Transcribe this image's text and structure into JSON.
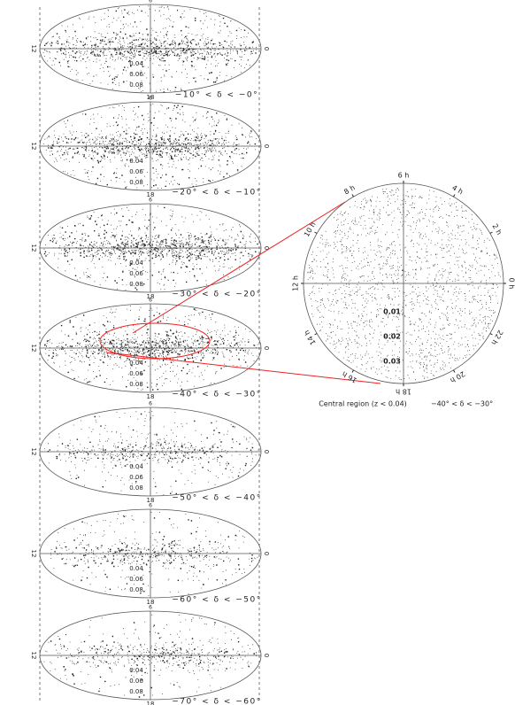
{
  "panels": [
    {
      "declination": "−10° < δ < −0°",
      "redshifts": [
        "0.04",
        "0.06",
        "0.08"
      ]
    },
    {
      "declination": "−20° < δ < −10°",
      "redshifts": [
        "0.04",
        "0.06",
        "0.08"
      ]
    },
    {
      "declination": "−30° < δ < −20°",
      "redshifts": [
        "0.04",
        "0.06",
        "0.08"
      ]
    },
    {
      "declination": "−40° < δ < −30°",
      "redshifts": [
        "0.04",
        "0.06",
        "0.08"
      ]
    },
    {
      "declination": "−50° < δ < −40°",
      "redshifts": [
        "0.04",
        "0.06",
        "0.08"
      ]
    },
    {
      "declination": "−60° < δ < −50°",
      "redshifts": [
        "0.04",
        "0.06",
        "0.08"
      ]
    },
    {
      "declination": "−70° < δ < −60°",
      "redshifts": [
        "0.04",
        "0.06",
        "0.08"
      ]
    }
  ],
  "panel_hours": [
    "12",
    "0",
    "6",
    "18"
  ],
  "zoom": {
    "hours": [
      "6 h",
      "4 h",
      "2 h",
      "0 h",
      "22 h",
      "20 h",
      "18 h",
      "16 h",
      "14 h",
      "12 h",
      "10 h",
      "8 h"
    ],
    "redshifts": [
      "0.01",
      "0.02",
      "0.03"
    ],
    "caption": "Central region (z < 0.04)",
    "declination": "−40° < δ < −30°"
  }
}
